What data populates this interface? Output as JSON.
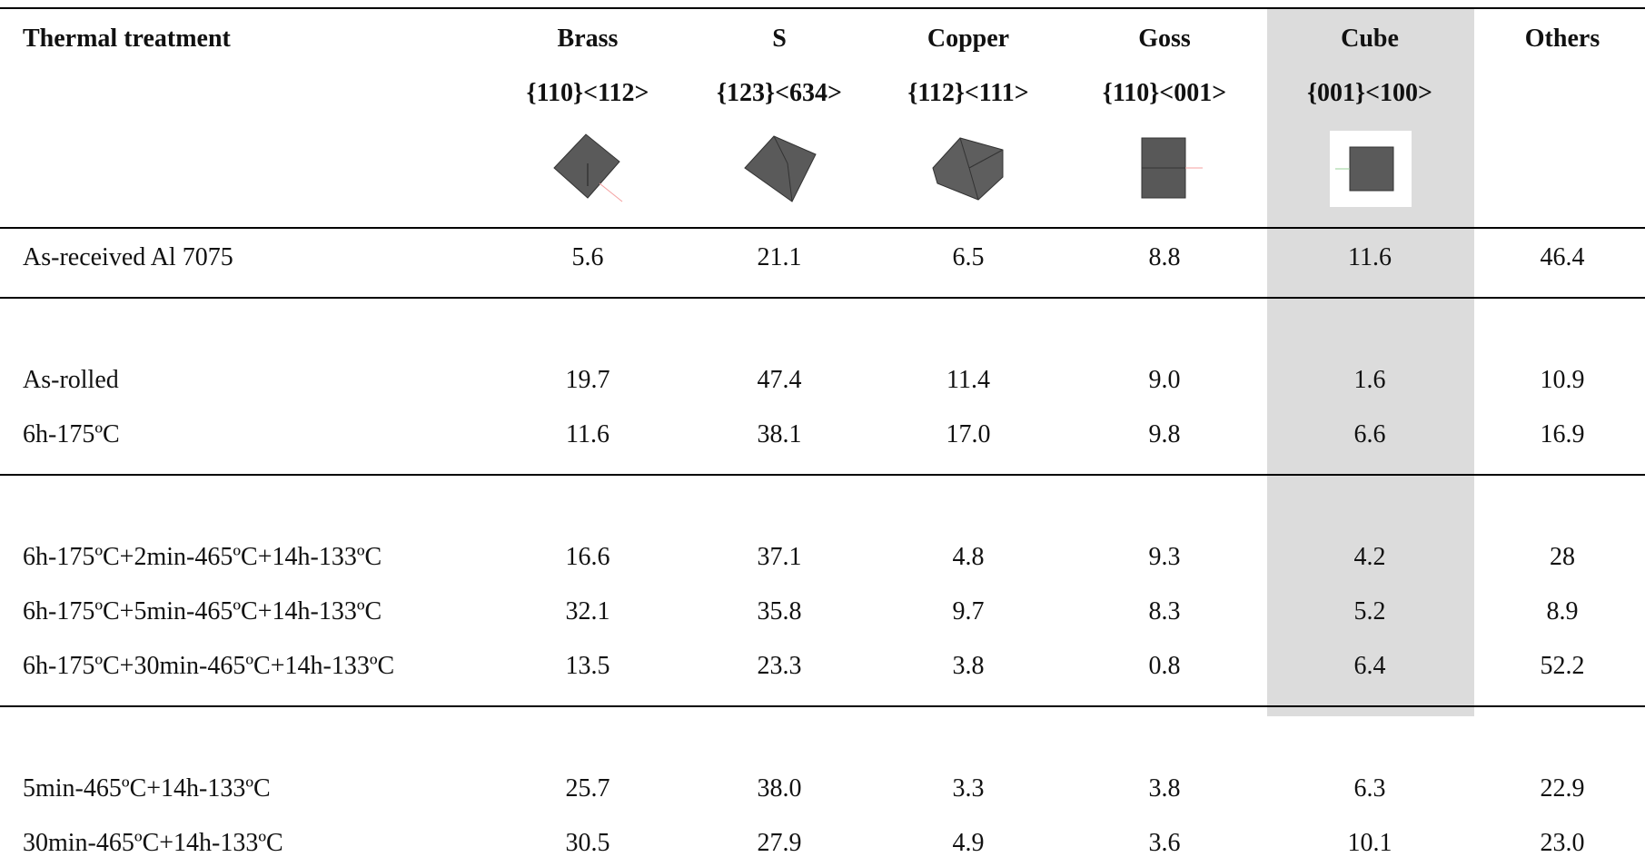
{
  "table": {
    "header": {
      "first": "Thermal treatment",
      "columns": [
        {
          "name": "Brass",
          "index": "{110}<112>"
        },
        {
          "name": "S",
          "index": "{123}<634>"
        },
        {
          "name": "Copper",
          "index": "{112}<111>"
        },
        {
          "name": "Goss",
          "index": "{110}<001>"
        },
        {
          "name": "Cube",
          "index": "{001}<100>"
        },
        {
          "name": "Others"
        }
      ]
    },
    "groups": [
      [
        [
          "As-received Al 7075",
          "5.6",
          "21.1",
          "6.5",
          "8.8",
          "11.6",
          "46.4"
        ]
      ],
      [
        [
          "As-rolled",
          "19.7",
          "47.4",
          "11.4",
          "9.0",
          "1.6",
          "10.9"
        ],
        [
          "6h-175ºC",
          "11.6",
          "38.1",
          "17.0",
          "9.8",
          "6.6",
          "16.9"
        ]
      ],
      [
        [
          "6h-175ºC+2min-465ºC+14h-133ºC",
          "16.6",
          "37.1",
          "4.8",
          "9.3",
          "4.2",
          "28"
        ],
        [
          "6h-175ºC+5min-465ºC+14h-133ºC",
          "32.1",
          "35.8",
          "9.7",
          "8.3",
          "5.2",
          "8.9"
        ],
        [
          "6h-175ºC+30min-465ºC+14h-133ºC",
          "13.5",
          "23.3",
          "3.8",
          "0.8",
          "6.4",
          "52.2"
        ]
      ],
      [
        [
          "5min-465ºC+14h-133ºC",
          "25.7",
          "38.0",
          "3.3",
          "3.8",
          "6.3",
          "22.9"
        ],
        [
          "30min-465ºC+14h-133ºC",
          "30.5",
          "27.9",
          "4.9",
          "3.6",
          "10.1",
          "23.0"
        ]
      ]
    ]
  }
}
